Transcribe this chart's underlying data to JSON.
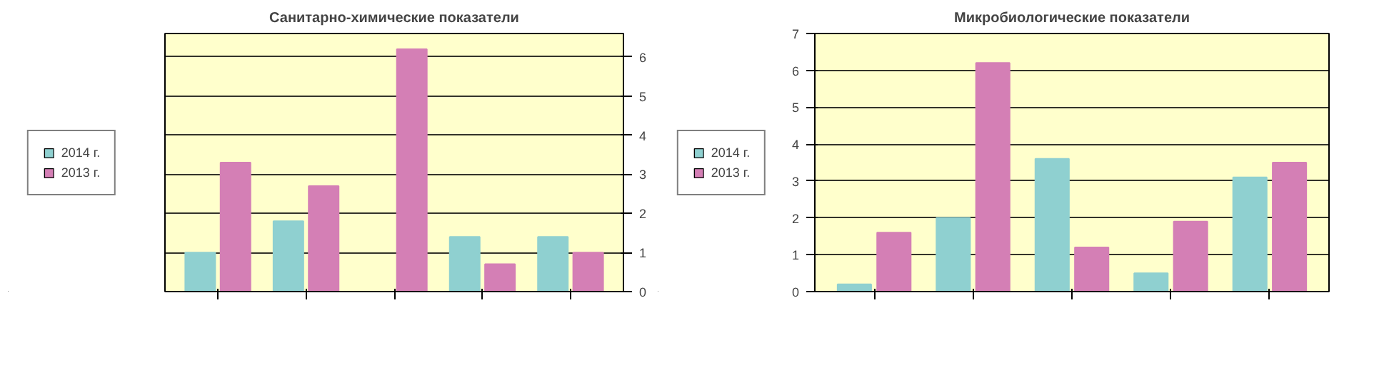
{
  "chart_data": [
    {
      "type": "bar",
      "title": "Санитарно-химические показатели",
      "categories": [
        null,
        null,
        null,
        null,
        null
      ],
      "series": [
        {
          "name": "2014 г.",
          "color": "#8fd0d0",
          "values": [
            1.0,
            1.8,
            0.0,
            1.4,
            1.4
          ]
        },
        {
          "name": "2013 г.",
          "color": "#d47fb5",
          "values": [
            3.3,
            2.7,
            6.2,
            0.7,
            1.0
          ]
        }
      ],
      "ylim": [
        0,
        6.6
      ],
      "yticks": [
        0,
        1,
        2,
        3,
        4,
        5,
        6
      ],
      "grid": "y",
      "legend": "left",
      "tick_labels": "y"
    },
    {
      "type": "bar",
      "title": "Микробиологические показатели",
      "categories": [
        null,
        null,
        null,
        null,
        null
      ],
      "series": [
        {
          "name": "2014 г.",
          "color": "#8fd0d0",
          "values": [
            0.2,
            2.0,
            3.6,
            0.5,
            3.1
          ]
        },
        {
          "name": "2013 г.",
          "color": "#d47fb5",
          "values": [
            1.6,
            6.2,
            1.2,
            1.9,
            3.5
          ]
        }
      ],
      "ylim": [
        0,
        7
      ],
      "yticks": [
        0,
        1,
        2,
        3,
        4,
        5,
        6,
        7
      ],
      "grid": "y",
      "legend": "left",
      "tick_labels": "y"
    }
  ]
}
